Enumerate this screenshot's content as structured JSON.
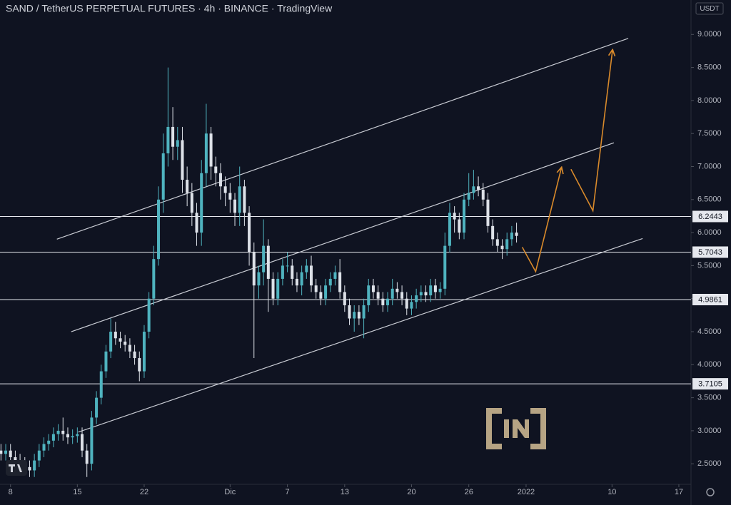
{
  "chart_data": {
    "type": "candlestick",
    "title": "SAND / TetherUS PERPETUAL FUTURES · 4h · BINANCE · TradingView",
    "currency_label": "USDT",
    "up_color": "#4fb3bf",
    "down_color": "#dde1e8",
    "x": [
      7,
      7.5,
      8,
      8.5,
      9,
      9.5,
      10,
      10.5,
      11,
      11.5,
      12,
      12.5,
      13,
      13.5,
      14,
      14.5,
      15,
      15.5,
      16,
      16.5,
      17,
      17.5,
      18,
      18.5,
      19,
      19.5,
      20,
      20.5,
      21,
      21.5,
      22,
      22.5,
      23,
      23.5,
      24,
      24.5,
      25,
      25.5,
      26,
      26.5,
      27,
      27.5,
      28,
      28.5,
      29,
      29.5,
      30,
      30.5,
      31,
      31.5,
      32,
      32.5,
      33,
      33.5,
      34,
      34.5,
      35,
      35.5,
      36,
      36.5,
      37,
      37.5,
      38,
      38.5,
      39,
      39.5,
      40,
      40.5,
      41,
      41.5,
      42,
      42.5,
      43,
      43.5,
      44,
      44.5,
      45,
      45.5,
      46,
      46.5,
      47,
      47.5,
      48,
      48.5,
      49,
      49.5,
      50,
      50.5,
      51,
      51.5,
      52,
      52.5,
      53,
      53.5,
      54,
      54.5,
      55,
      55.5,
      56,
      56.5,
      57,
      57.5,
      58,
      58.5,
      59,
      59.5,
      60,
      60.5,
      61
    ],
    "open": [
      2.7,
      2.65,
      2.7,
      2.6,
      2.55,
      2.5,
      2.45,
      2.4,
      2.55,
      2.7,
      2.8,
      2.85,
      2.95,
      3.0,
      2.95,
      2.9,
      2.92,
      2.95,
      2.7,
      2.5,
      3.2,
      3.5,
      3.9,
      4.2,
      4.5,
      4.4,
      4.35,
      4.3,
      4.2,
      4.1,
      3.9,
      4.5,
      5.0,
      5.6,
      6.5,
      7.2,
      7.6,
      7.3,
      7.4,
      6.8,
      6.6,
      6.3,
      6.0,
      6.9,
      7.5,
      7.0,
      6.9,
      6.7,
      6.6,
      6.5,
      6.3,
      6.7,
      6.3,
      5.7,
      5.2,
      5.4,
      5.8,
      5.3,
      5.0,
      5.3,
      5.5,
      5.5,
      5.3,
      5.2,
      5.4,
      5.5,
      5.2,
      5.1,
      5.0,
      5.2,
      5.3,
      5.4,
      5.1,
      4.9,
      4.7,
      4.8,
      4.7,
      4.9,
      5.2,
      5.1,
      5.0,
      4.9,
      5.0,
      5.15,
      5.1,
      5.0,
      4.85,
      4.95,
      5.05,
      5.1,
      5.05,
      5.2,
      5.1,
      5.15,
      5.8,
      6.3,
      6.2,
      6.0,
      6.5,
      6.6,
      6.7,
      6.65,
      6.5,
      6.1,
      5.9,
      5.8,
      5.75,
      5.9,
      6.0
    ],
    "high": [
      2.8,
      2.8,
      2.8,
      2.7,
      2.65,
      2.6,
      2.55,
      2.65,
      2.8,
      2.9,
      2.95,
      3.05,
      3.1,
      3.2,
      3.05,
      3.02,
      3.05,
      3.05,
      2.8,
      3.3,
      3.6,
      4.0,
      4.3,
      4.7,
      4.65,
      4.5,
      4.45,
      4.4,
      4.3,
      4.2,
      4.6,
      5.1,
      5.8,
      6.7,
      7.5,
      8.5,
      7.9,
      7.6,
      7.6,
      7.0,
      6.75,
      6.45,
      7.1,
      7.95,
      7.6,
      7.15,
      7.05,
      6.85,
      6.75,
      6.6,
      7.0,
      6.8,
      6.4,
      5.85,
      5.5,
      6.2,
      5.9,
      5.4,
      5.4,
      5.6,
      5.7,
      5.6,
      5.4,
      5.5,
      5.6,
      5.65,
      5.3,
      5.2,
      5.3,
      5.4,
      5.5,
      5.6,
      5.2,
      5.0,
      4.9,
      4.9,
      5.0,
      5.3,
      5.3,
      5.2,
      5.1,
      5.1,
      5.3,
      5.25,
      5.2,
      5.1,
      5.05,
      5.15,
      5.2,
      5.2,
      5.3,
      5.3,
      5.25,
      6.0,
      6.45,
      6.4,
      6.3,
      6.6,
      6.9,
      6.95,
      6.85,
      6.75,
      6.6,
      6.2,
      6.0,
      5.9,
      6.0,
      6.1,
      6.15
    ],
    "low": [
      2.55,
      2.55,
      2.5,
      2.45,
      2.4,
      2.35,
      2.3,
      2.3,
      2.45,
      2.6,
      2.7,
      2.75,
      2.85,
      2.85,
      2.8,
      2.8,
      2.82,
      2.6,
      2.3,
      2.4,
      3.1,
      3.4,
      3.8,
      4.1,
      4.3,
      4.25,
      4.2,
      4.1,
      4.0,
      3.75,
      3.8,
      4.4,
      4.9,
      5.5,
      6.3,
      7.0,
      7.1,
      7.1,
      6.6,
      6.4,
      6.1,
      5.8,
      5.8,
      6.7,
      6.8,
      6.7,
      6.5,
      6.4,
      6.3,
      6.1,
      6.1,
      6.1,
      5.5,
      4.1,
      5.0,
      5.2,
      4.8,
      4.9,
      4.9,
      5.2,
      5.4,
      5.2,
      5.1,
      5.05,
      5.3,
      5.1,
      5.0,
      4.9,
      4.9,
      5.1,
      5.2,
      5.0,
      4.8,
      4.6,
      4.5,
      4.6,
      4.4,
      4.8,
      5.0,
      4.9,
      4.8,
      4.8,
      4.9,
      5.0,
      4.9,
      4.75,
      4.75,
      4.85,
      4.95,
      4.95,
      4.95,
      5.0,
      5.0,
      5.05,
      5.7,
      6.0,
      5.9,
      5.9,
      6.4,
      6.5,
      6.55,
      6.4,
      6.0,
      5.8,
      5.7,
      5.6,
      5.65,
      5.8,
      5.85
    ],
    "close": [
      2.65,
      2.7,
      2.6,
      2.55,
      2.5,
      2.45,
      2.4,
      2.55,
      2.7,
      2.8,
      2.85,
      2.95,
      3.0,
      2.95,
      2.9,
      2.92,
      2.95,
      2.7,
      2.5,
      3.2,
      3.5,
      3.9,
      4.2,
      4.5,
      4.4,
      4.35,
      4.3,
      4.2,
      4.1,
      3.9,
      4.5,
      5.0,
      5.6,
      6.5,
      7.2,
      7.6,
      7.3,
      7.4,
      6.8,
      6.6,
      6.3,
      6.0,
      6.9,
      7.5,
      7.0,
      6.9,
      6.7,
      6.6,
      6.5,
      6.3,
      6.7,
      6.3,
      5.7,
      5.2,
      5.4,
      5.8,
      5.3,
      5.0,
      5.3,
      5.5,
      5.5,
      5.3,
      5.2,
      5.4,
      5.5,
      5.2,
      5.1,
      5.0,
      5.2,
      5.3,
      5.4,
      5.1,
      4.9,
      4.7,
      4.8,
      4.7,
      4.9,
      5.2,
      5.1,
      5.0,
      4.9,
      5.0,
      5.15,
      5.1,
      5.0,
      4.85,
      4.95,
      5.05,
      5.1,
      5.05,
      5.2,
      5.1,
      5.15,
      5.8,
      6.3,
      6.2,
      6.0,
      6.5,
      6.6,
      6.7,
      6.65,
      6.5,
      6.1,
      5.9,
      5.8,
      5.75,
      5.9,
      6.0,
      5.95
    ],
    "xlim": [
      6.9,
      79.2
    ],
    "xticks": [
      8,
      15,
      22,
      {
        "value": 31,
        "label": "Dic"
      },
      {
        "value": 37,
        "label": "7"
      },
      {
        "value": 43,
        "label": "13"
      },
      {
        "value": 50,
        "label": "20"
      },
      {
        "value": 56,
        "label": "26"
      },
      {
        "value": 62,
        "label": "2022"
      },
      {
        "value": 71,
        "label": "10"
      },
      {
        "value": 78,
        "label": "17"
      }
    ],
    "ylim": [
      2.2,
      9.5
    ],
    "yticks": [
      {
        "value": 2.5,
        "label": "2.5000"
      },
      {
        "value": 3,
        "label": "3.0000"
      },
      {
        "value": 3.5,
        "label": "3.5000"
      },
      {
        "value": 4,
        "label": "4.0000"
      },
      {
        "value": 4.5,
        "label": "4.5000"
      },
      {
        "value": 5,
        "label": "5.0000"
      },
      {
        "value": 5.5,
        "label": "5.5000"
      },
      {
        "value": 6,
        "label": "6.0000"
      },
      {
        "value": 6.5,
        "label": "6.5000"
      },
      {
        "value": 7,
        "label": "7.0000"
      },
      {
        "value": 7.5,
        "label": "7.5000"
      },
      {
        "value": 8,
        "label": "8.0000"
      },
      {
        "value": 8.5,
        "label": "8.5000"
      },
      {
        "value": 9,
        "label": "9.0000"
      }
    ],
    "levels": [
      {
        "value": 6.2443,
        "label": "6.2443"
      },
      {
        "value": 5.7043,
        "label": "5.7043"
      },
      {
        "value": 4.9861,
        "label": "4.9861"
      },
      {
        "value": 3.7105,
        "label": "3.7105"
      }
    ],
    "level_color": "#e6e8ee",
    "trendlines": [
      {
        "color": "#c9ccd4",
        "x": [
          12.86,
          72.7
        ],
        "y": [
          5.9,
          8.94
        ]
      },
      {
        "color": "#c9ccd4",
        "x": [
          14.36,
          71.2
        ],
        "y": [
          4.5,
          7.36
        ]
      },
      {
        "color": "#c9ccd4",
        "x": [
          15.1,
          74.2
        ],
        "y": [
          2.98,
          5.91
        ]
      }
    ],
    "projections": [
      {
        "color": "#d98a2b",
        "x": [
          61.6,
          63.0,
          65.7
        ],
        "y": [
          5.78,
          5.41,
          6.98
        ]
      },
      {
        "color": "#d98a2b",
        "x": [
          66.7,
          69.0,
          71.05
        ],
        "y": [
          6.96,
          6.33,
          8.76
        ]
      }
    ]
  }
}
